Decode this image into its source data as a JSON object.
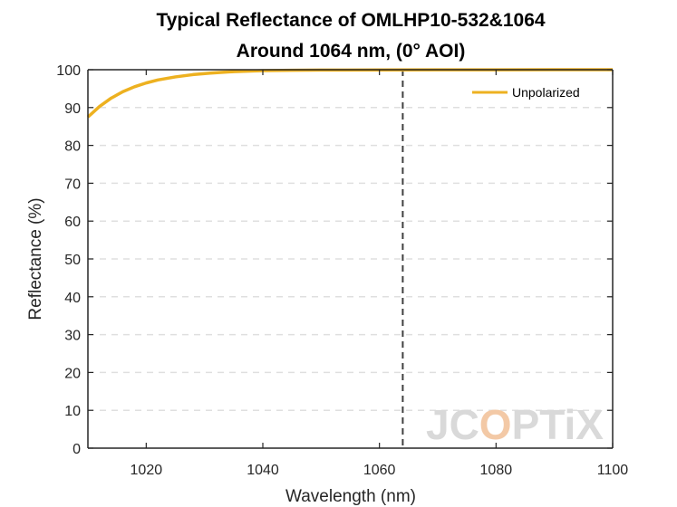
{
  "chart_data": {
    "type": "line",
    "title": [
      "Typical Reflectance of OMLHP10-532&1064",
      "Around 1064 nm, (0° AOI)"
    ],
    "xlabel": "Wavelength (nm)",
    "ylabel": "Reflectance (%)",
    "xlim": [
      1010,
      1100
    ],
    "ylim": [
      0,
      100
    ],
    "xticks": [
      1020,
      1040,
      1060,
      1080,
      1100
    ],
    "yticks": [
      0,
      10,
      20,
      30,
      40,
      50,
      60,
      70,
      80,
      90,
      100
    ],
    "grid": "horizontal-dashed",
    "legend_position": "top-right",
    "reference_line": {
      "x": 1064,
      "style": "dashed"
    },
    "series": [
      {
        "name": "Unpolarized",
        "color": "#EDB120",
        "x": [
          1010,
          1012,
          1014,
          1016,
          1018,
          1020,
          1022,
          1025,
          1028,
          1031,
          1035,
          1040,
          1045,
          1050,
          1060,
          1070,
          1080,
          1090,
          1100
        ],
        "y": [
          87.5,
          90.3,
          92.5,
          94.2,
          95.5,
          96.5,
          97.3,
          98.1,
          98.7,
          99.1,
          99.5,
          99.75,
          99.85,
          99.9,
          99.95,
          99.97,
          99.98,
          99.99,
          99.99
        ]
      }
    ]
  },
  "watermark": {
    "text_a": "JC",
    "text_o": "O",
    "text_b": "PTiX"
  },
  "colors": {
    "axis": "#262626",
    "grid": "#dfdfdf",
    "watermark": "#d9d9d9",
    "watermark_accent": "#f3c9a6"
  }
}
